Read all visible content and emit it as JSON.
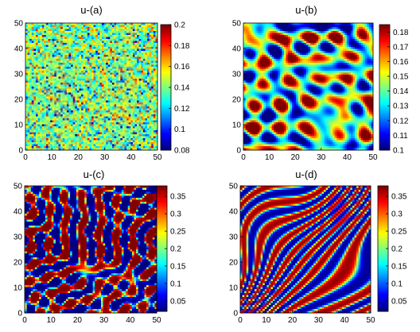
{
  "panels": [
    {
      "title": "u-(a)",
      "pattern": "noise",
      "x_ticks": [
        "0",
        "10",
        "20",
        "30",
        "40",
        "50"
      ],
      "y_ticks": [
        "0",
        "10",
        "20",
        "30",
        "40",
        "50"
      ],
      "colorbar_ticks": [
        "0.2",
        "0.18",
        "0.16",
        "0.14",
        "0.12",
        "0.1",
        "0.08"
      ],
      "xlim": [
        0,
        50
      ],
      "ylim": [
        0,
        50
      ],
      "clim": [
        0.08,
        0.2
      ]
    },
    {
      "title": "u-(b)",
      "pattern": "spots",
      "x_ticks": [
        "0",
        "10",
        "20",
        "30",
        "40",
        "50"
      ],
      "y_ticks": [
        "0",
        "10",
        "20",
        "30",
        "40",
        "50"
      ],
      "colorbar_ticks": [
        "0.18",
        "0.17",
        "0.16",
        "0.15",
        "0.14",
        "0.13",
        "0.12",
        "0.11",
        "0.1"
      ],
      "xlim": [
        0,
        50
      ],
      "ylim": [
        0,
        50
      ],
      "clim": [
        0.1,
        0.185
      ]
    },
    {
      "title": "u-(c)",
      "pattern": "labyrinth",
      "x_ticks": [
        "0",
        "10",
        "20",
        "30",
        "40",
        "50"
      ],
      "y_ticks": [
        "0",
        "10",
        "20",
        "30",
        "40",
        "50"
      ],
      "colorbar_ticks": [
        "0.35",
        "0.3",
        "0.25",
        "0.2",
        "0.15",
        "0.1",
        "0.05"
      ],
      "xlim": [
        0,
        50
      ],
      "ylim": [
        0,
        50
      ],
      "clim": [
        0.02,
        0.38
      ]
    },
    {
      "title": "u-(d)",
      "pattern": "stripes",
      "x_ticks": [
        "0",
        "10",
        "20",
        "30",
        "40",
        "50"
      ],
      "y_ticks": [
        "0",
        "10",
        "20",
        "30",
        "40",
        "50"
      ],
      "colorbar_ticks": [
        "0.35",
        "0.3",
        "0.25",
        "0.2",
        "0.15",
        "0.1",
        "0.05"
      ],
      "xlim": [
        0,
        50
      ],
      "ylim": [
        0,
        50
      ],
      "clim": [
        0.02,
        0.38
      ]
    }
  ],
  "chart_data": [
    {
      "type": "heatmap",
      "title": "u-(a)",
      "xlim": [
        0,
        50
      ],
      "ylim": [
        0,
        50
      ],
      "colorbar_range": [
        0.08,
        0.2
      ],
      "colormap": "jet",
      "pattern": "random noise"
    },
    {
      "type": "heatmap",
      "title": "u-(b)",
      "xlim": [
        0,
        50
      ],
      "ylim": [
        0,
        50
      ],
      "colorbar_range": [
        0.1,
        0.185
      ],
      "colormap": "jet",
      "pattern": "spots"
    },
    {
      "type": "heatmap",
      "title": "u-(c)",
      "xlim": [
        0,
        50
      ],
      "ylim": [
        0,
        50
      ],
      "colorbar_range": [
        0.02,
        0.38
      ],
      "colormap": "jet",
      "pattern": "labyrinth stripes"
    },
    {
      "type": "heatmap",
      "title": "u-(d)",
      "xlim": [
        0,
        50
      ],
      "ylim": [
        0,
        50
      ],
      "colorbar_range": [
        0.02,
        0.38
      ],
      "colormap": "jet",
      "pattern": "aligned stripes"
    }
  ]
}
